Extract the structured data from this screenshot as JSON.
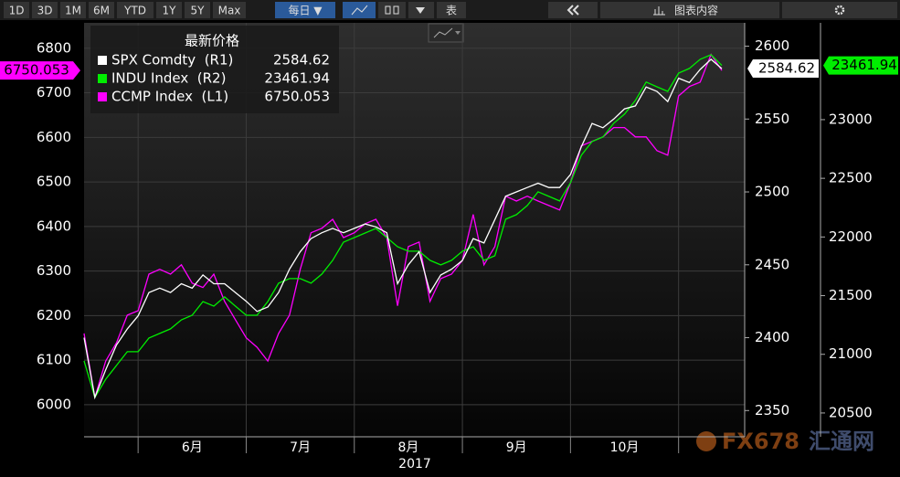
{
  "toolbar": {
    "periods": [
      "1D",
      "3D",
      "1M",
      "6M",
      "YTD",
      "1Y",
      "5Y",
      "Max"
    ],
    "frequency": "每日 ▼",
    "table": "表",
    "chart_content": "图表内容"
  },
  "watermark": {
    "brand": "FX678",
    "name": "汇通网"
  },
  "chart_data": {
    "type": "line",
    "legend_title": "最新价格",
    "xlabel": "2017",
    "categories": [
      null,
      null,
      null,
      null,
      null,
      null,
      null,
      null,
      null,
      null,
      "6月",
      null,
      null,
      null,
      null,
      null,
      null,
      null,
      null,
      null,
      "7月",
      null,
      null,
      null,
      null,
      null,
      null,
      null,
      null,
      null,
      "8月",
      null,
      null,
      null,
      null,
      null,
      null,
      null,
      null,
      null,
      "9月",
      null,
      null,
      null,
      null,
      null,
      null,
      null,
      null,
      null,
      "10月",
      null,
      null,
      null,
      null,
      null,
      null,
      null,
      null,
      null
    ],
    "ylim": [
      5928,
      6857
    ],
    "yticks": [
      6000,
      6100,
      6200,
      6300,
      6400,
      6500,
      6600,
      6700,
      6800
    ],
    "y2lim": [
      2332,
      2616
    ],
    "y2ticks": [
      2350,
      2400,
      2450,
      2500,
      2550,
      2600
    ],
    "y3lim": [
      20297,
      23825
    ],
    "y3ticks": [
      20500,
      21000,
      21500,
      22000,
      22500,
      23000
    ],
    "grid": true,
    "series": [
      {
        "name": "SPX Comdty  (R1)",
        "color": "#ffffff",
        "axis": "y2",
        "values": [
          2400,
          2359,
          2378,
          2395,
          2406,
          2415,
          2431,
          2434,
          2431,
          2437,
          2434,
          2443,
          2437,
          2437,
          2431,
          2425,
          2418,
          2421,
          2431,
          2447,
          2459,
          2468,
          2472,
          2475,
          2472,
          2475,
          2478,
          2476,
          2472,
          2437,
          2450,
          2459,
          2431,
          2443,
          2447,
          2453,
          2468,
          2465,
          2481,
          2497,
          2500,
          2503,
          2506,
          2503,
          2503,
          2512,
          2531,
          2547,
          2544,
          2550,
          2557,
          2559,
          2572,
          2569,
          2562,
          2578,
          2575,
          2584,
          2591,
          2584.62
        ]
      },
      {
        "name": "INDU Index  (R2)",
        "color": "#00ee00",
        "axis": "y3",
        "values": [
          20944,
          20632,
          20788,
          20905,
          21022,
          21022,
          21139,
          21178,
          21217,
          21294,
          21333,
          21450,
          21411,
          21489,
          21411,
          21333,
          21333,
          21450,
          21606,
          21645,
          21645,
          21606,
          21684,
          21801,
          21956,
          21995,
          22034,
          22073,
          21995,
          21917,
          21879,
          21879,
          21801,
          21762,
          21801,
          21879,
          21917,
          21801,
          21840,
          22151,
          22190,
          22268,
          22385,
          22346,
          22307,
          22463,
          22696,
          22813,
          22852,
          22969,
          23047,
          23164,
          23320,
          23280,
          23241,
          23397,
          23436,
          23514,
          23553,
          23461.94
        ]
      },
      {
        "name": "CCMP Index  (L1)",
        "color": "#ff00ff",
        "axis": "y",
        "values": [
          6160,
          6016,
          6098,
          6139,
          6201,
          6211,
          6293,
          6304,
          6293,
          6314,
          6273,
          6263,
          6293,
          6232,
          6191,
          6150,
          6129,
          6098,
          6160,
          6201,
          6304,
          6386,
          6396,
          6416,
          6375,
          6386,
          6406,
          6416,
          6375,
          6222,
          6355,
          6365,
          6232,
          6283,
          6293,
          6324,
          6427,
          6314,
          6355,
          6468,
          6457,
          6468,
          6457,
          6447,
          6437,
          6498,
          6581,
          6591,
          6601,
          6622,
          6622,
          6601,
          6601,
          6570,
          6560,
          6693,
          6714,
          6724,
          6786,
          6750.053
        ]
      }
    ]
  }
}
